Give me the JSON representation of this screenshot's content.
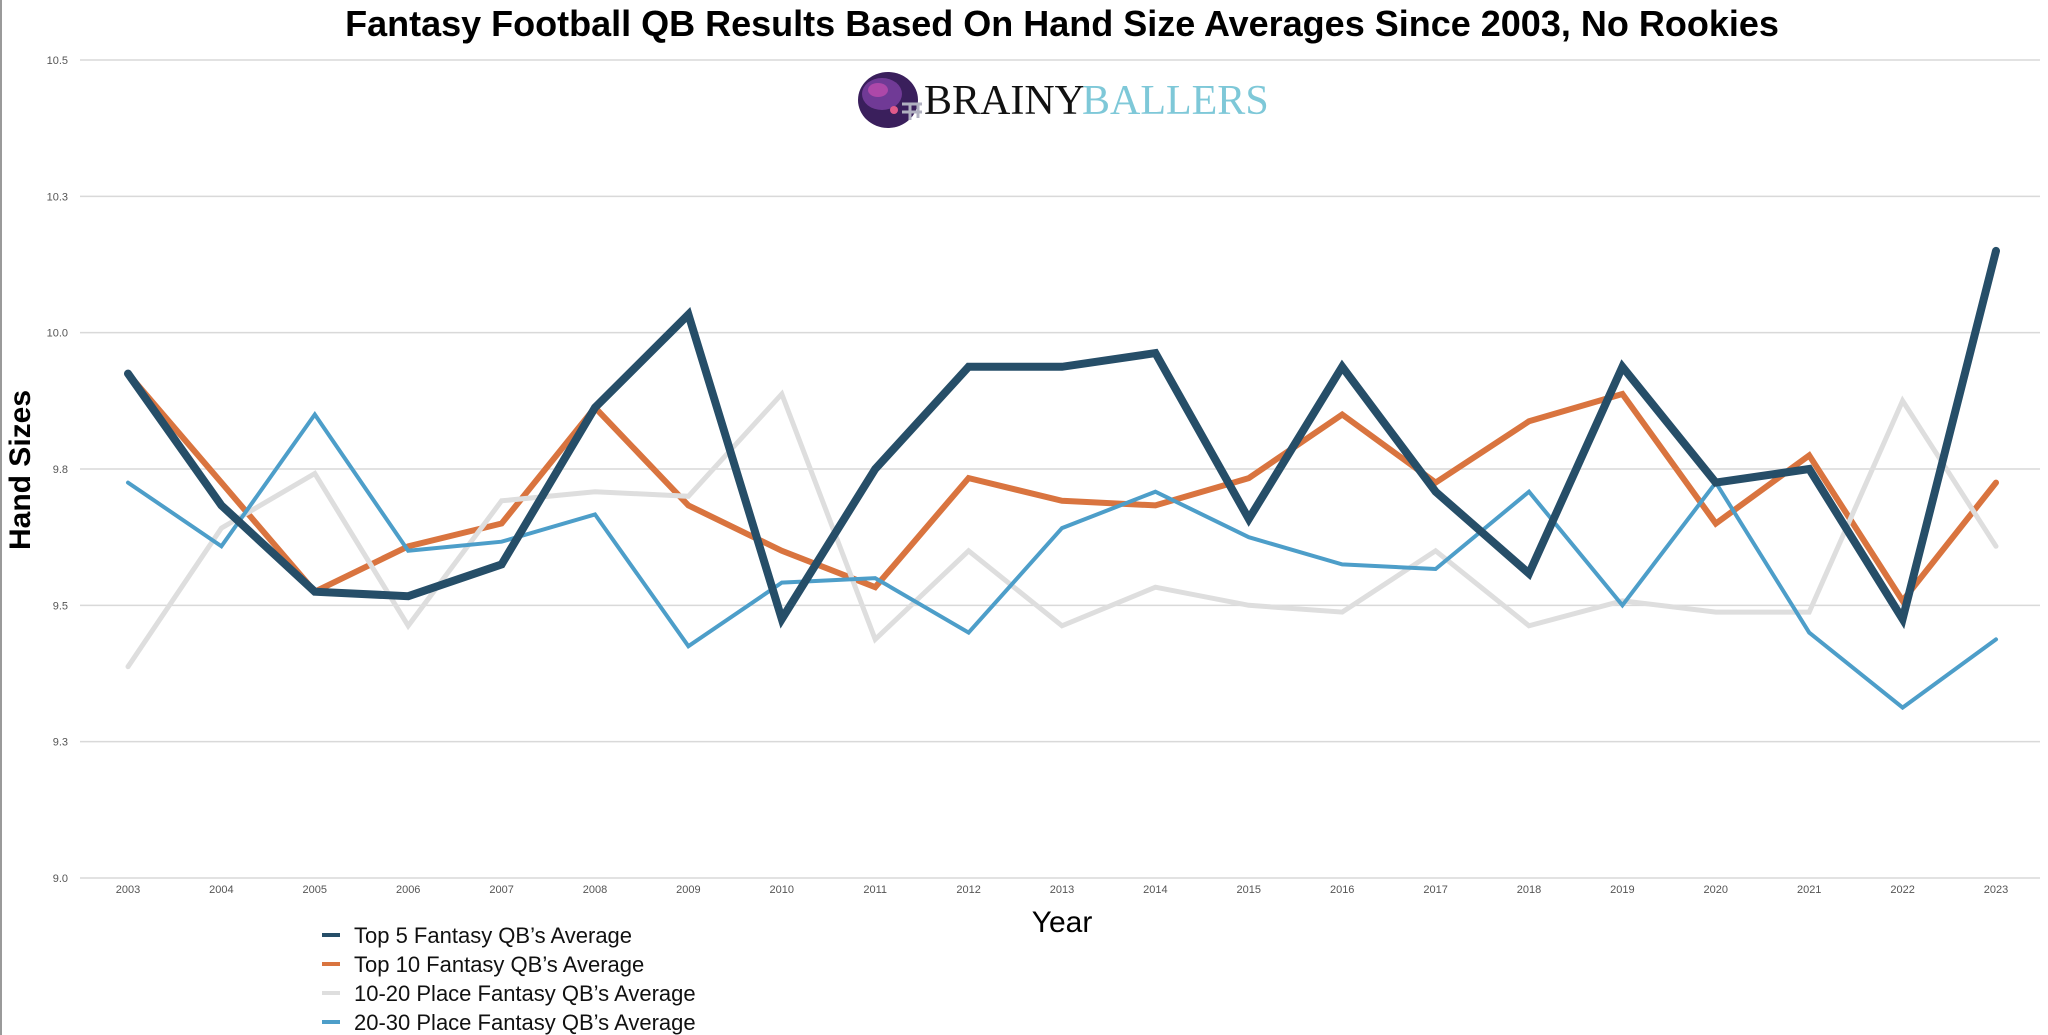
{
  "chart_data": {
    "type": "line",
    "title": "Fantasy Football QB Results Based On Hand Size Averages Since 2003, No Rookies",
    "xlabel": "Year",
    "ylabel": "Hand Sizes",
    "ylim": [
      9.0,
      10.5
    ],
    "yticks": [
      9.0,
      9.3,
      9.5,
      9.8,
      10.0,
      10.3,
      10.5
    ],
    "ytick_labels": [
      "9.0",
      "9.3",
      "9.5",
      "9.8",
      "10.0",
      "10.3",
      "10.5"
    ],
    "y_scale_note": "tick spacing is uniform",
    "grid": true,
    "legend_position": "bottom-left",
    "categories": [
      "2003",
      "2004",
      "2005",
      "2006",
      "2007",
      "2008",
      "2009",
      "2010",
      "2011",
      "2012",
      "2013",
      "2014",
      "2015",
      "2016",
      "2017",
      "2018",
      "2019",
      "2020",
      "2021",
      "2022",
      "2023"
    ],
    "series": [
      {
        "name": "Top 10 Fantasy QB’s Average",
        "color": "#d9743f",
        "stroke": 6,
        "values": [
          9.94,
          9.77,
          9.53,
          9.63,
          9.68,
          9.89,
          9.72,
          9.62,
          9.54,
          9.78,
          9.73,
          9.72,
          9.78,
          9.88,
          9.77,
          9.87,
          9.91,
          9.68,
          9.82,
          9.51,
          9.77
        ]
      },
      {
        "name": "10-20 Place Fantasy QB’s Average",
        "color": "#dedede",
        "stroke": 5,
        "values": [
          9.41,
          9.67,
          9.79,
          9.47,
          9.73,
          9.75,
          9.74,
          9.91,
          9.45,
          9.62,
          9.47,
          9.54,
          9.5,
          9.49,
          9.62,
          9.47,
          9.51,
          9.49,
          9.49,
          9.9,
          9.63
        ]
      },
      {
        "name": "20-30 Place Fantasy QB’s Average",
        "color": "#4d9ec9",
        "stroke": 4,
        "values": [
          9.77,
          9.63,
          9.88,
          9.62,
          9.64,
          9.7,
          9.44,
          9.55,
          9.56,
          9.46,
          9.67,
          9.75,
          9.65,
          9.59,
          9.58,
          9.75,
          9.5,
          9.77,
          9.46,
          9.35,
          9.45
        ]
      },
      {
        "name": "Top 5 Fantasy QB’s Average",
        "color": "#264e68",
        "stroke": 8,
        "values": [
          9.94,
          9.72,
          9.53,
          9.52,
          9.59,
          9.89,
          10.04,
          9.48,
          9.8,
          9.95,
          9.95,
          9.97,
          9.69,
          9.95,
          9.75,
          9.57,
          9.95,
          9.77,
          9.8,
          9.48,
          10.18
        ]
      }
    ],
    "legend_order": [
      3,
      0,
      1,
      2
    ]
  },
  "logo": {
    "text_primary": "BRAINY",
    "text_secondary": "BALLERS",
    "color_primary": "#111111",
    "color_secondary": "#7ec8d8",
    "icon": "football-helmet-icon"
  },
  "colors": {
    "grid": "#d9d9d9",
    "axis_text": "#555555",
    "title": "#000000"
  }
}
